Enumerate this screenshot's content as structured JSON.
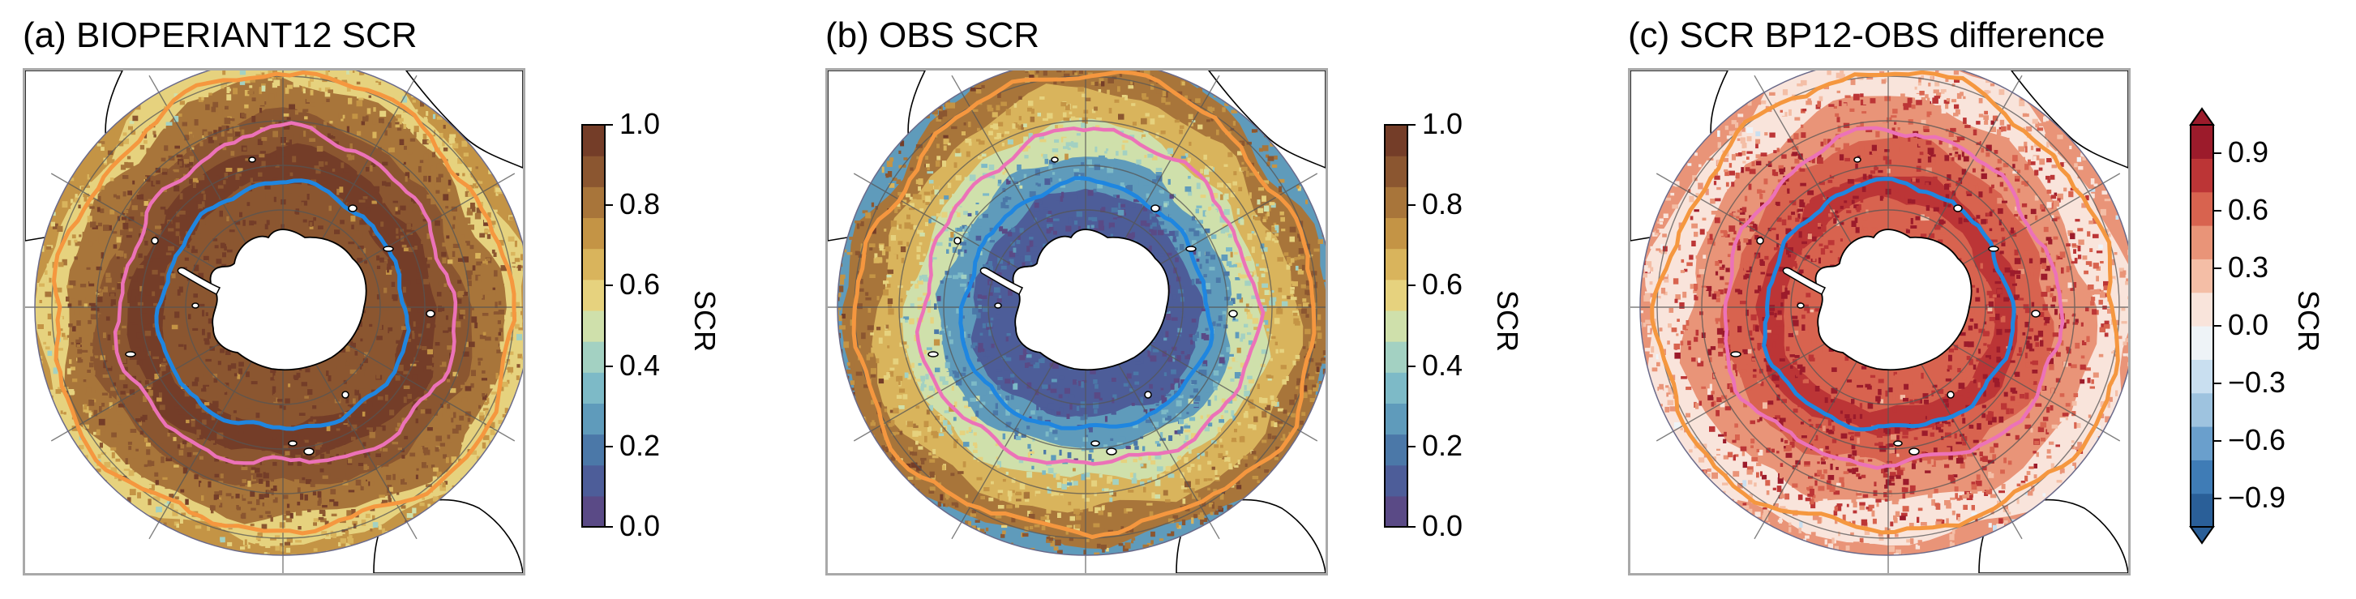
{
  "panels": [
    {
      "title": "(a) BIOPERIANT12 SCR",
      "field": "model",
      "colorbar": {
        "type": "sequential",
        "ticks": [
          "0.0",
          "0.2",
          "0.4",
          "0.6",
          "0.8",
          "1.0"
        ],
        "label": "SCR",
        "extend": false
      }
    },
    {
      "title": "(b) OBS SCR",
      "field": "obs",
      "colorbar": {
        "type": "sequential",
        "ticks": [
          "0.0",
          "0.2",
          "0.4",
          "0.6",
          "0.8",
          "1.0"
        ],
        "label": "SCR",
        "extend": false
      }
    },
    {
      "title": "(c) SCR BP12-OBS difference",
      "field": "difference",
      "colorbar": {
        "type": "diverging",
        "ticks": [
          "−0.9",
          "−0.6",
          "−0.3",
          "0.0",
          "0.3",
          "0.6",
          "0.9"
        ],
        "label": "SCR",
        "extend": true
      }
    }
  ],
  "colormaps": {
    "sequential": [
      "#5a4a86",
      "#4d5d99",
      "#4b78a8",
      "#5f9bbb",
      "#7dbac7",
      "#a3d1c2",
      "#cfe0ab",
      "#e6d27e",
      "#d9b45c",
      "#c49445",
      "#a8753a",
      "#8b5630",
      "#743d28"
    ],
    "diverging": [
      "#2a5f98",
      "#3f7cb6",
      "#6a9fcc",
      "#9ec3df",
      "#c9dff0",
      "#eef3f7",
      "#f9e4db",
      "#f4bea6",
      "#e99478",
      "#d8634f",
      "#bc3536",
      "#9c1b2b"
    ]
  },
  "front_colors": {
    "orange": "#f5973f",
    "pink": "#ec72b8",
    "blue": "#1f86e0"
  }
}
